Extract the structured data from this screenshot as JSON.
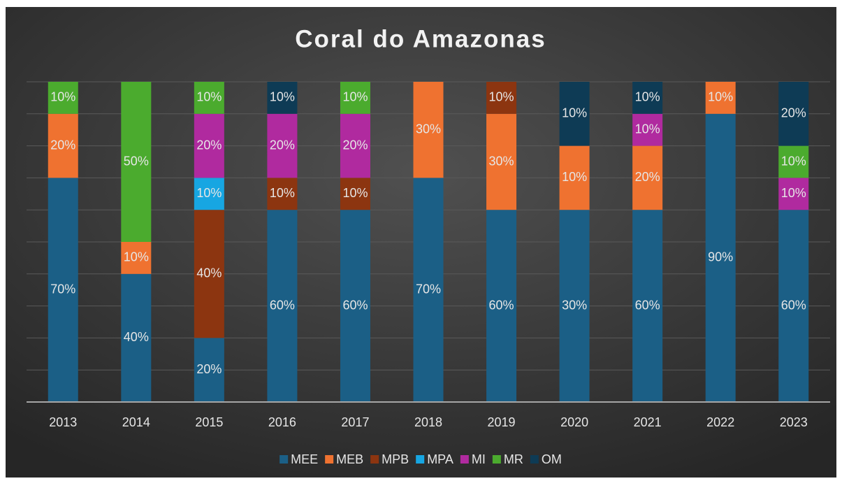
{
  "chart_data": {
    "type": "bar",
    "stacking": "percent",
    "title": "Coral do Amazonas",
    "categories": [
      "2013",
      "2014",
      "2015",
      "2016",
      "2017",
      "2018",
      "2019",
      "2020",
      "2021",
      "2022",
      "2023"
    ],
    "series": [
      {
        "name": "MEE",
        "color": "#1b5f86",
        "values": [
          70,
          40,
          20,
          60,
          60,
          70,
          60,
          30,
          60,
          90,
          60
        ],
        "value_labels": [
          "70%",
          "40%",
          "20%",
          "60%",
          "60%",
          "70%",
          "60%",
          "30%",
          "60%",
          "90%",
          "60%"
        ]
      },
      {
        "name": "MEB",
        "color": "#ef7230",
        "values": [
          20,
          10,
          null,
          null,
          null,
          30,
          30,
          10,
          20,
          10,
          null
        ],
        "value_labels": [
          "20%",
          "10%",
          null,
          null,
          null,
          "30%",
          "30%",
          "10%",
          "20%",
          "10%",
          null
        ]
      },
      {
        "name": "MPB",
        "color": "#8c3510",
        "values": [
          null,
          null,
          40,
          10,
          10,
          null,
          10,
          null,
          null,
          null,
          null
        ],
        "value_labels": [
          null,
          null,
          "40%",
          "10%",
          "10%",
          null,
          "10%",
          null,
          null,
          null,
          null
        ]
      },
      {
        "name": "MPA",
        "color": "#17a6e2",
        "values": [
          null,
          null,
          10,
          null,
          null,
          null,
          null,
          null,
          null,
          null,
          null
        ],
        "value_labels": [
          null,
          null,
          "10%",
          null,
          null,
          null,
          null,
          null,
          null,
          null,
          null
        ]
      },
      {
        "name": "MI",
        "color": "#b02a9f",
        "values": [
          null,
          null,
          20,
          20,
          20,
          null,
          null,
          null,
          10,
          null,
          10
        ],
        "value_labels": [
          null,
          null,
          "20%",
          "20%",
          "20%",
          null,
          null,
          null,
          "10%",
          null,
          "10%"
        ]
      },
      {
        "name": "MR",
        "color": "#4bab2e",
        "values": [
          10,
          50,
          10,
          null,
          10,
          null,
          null,
          null,
          null,
          null,
          10
        ],
        "value_labels": [
          "10%",
          "50%",
          "10%",
          null,
          "10%",
          null,
          null,
          null,
          null,
          null,
          "10%"
        ]
      },
      {
        "name": "OM",
        "color": "#0e3b55",
        "values": [
          null,
          null,
          null,
          10,
          null,
          null,
          null,
          10,
          10,
          null,
          20
        ],
        "value_labels": [
          null,
          null,
          null,
          "10%",
          null,
          null,
          null,
          "10%",
          "10%",
          null,
          "20%"
        ]
      }
    ],
    "ylim": [
      0,
      100
    ],
    "yticks": [
      0,
      10,
      20,
      30,
      40,
      50,
      60,
      70,
      80,
      90,
      100
    ],
    "grid": true,
    "legend": "bottom"
  }
}
